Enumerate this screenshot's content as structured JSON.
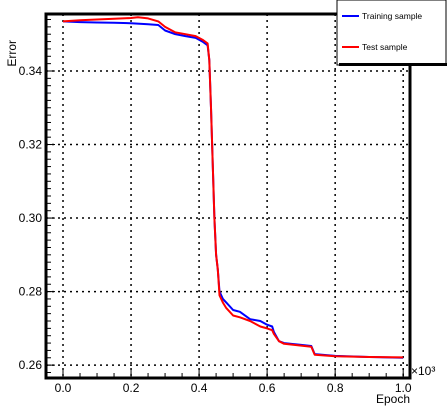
{
  "chart_data": {
    "type": "line",
    "xlabel": "Epoch",
    "ylabel": "Error",
    "x_multiplier_label": "×10³",
    "xlim": [
      -0.05,
      1.02
    ],
    "ylim": [
      0.2565,
      0.3555
    ],
    "x_ticks": [
      0.0,
      0.2,
      0.4,
      0.6,
      0.8,
      1.0
    ],
    "x_tick_labels": [
      "0.0",
      "0.2",
      "0.4",
      "0.6",
      "0.8",
      "1.0"
    ],
    "y_ticks": [
      0.26,
      0.28,
      0.3,
      0.32,
      0.34
    ],
    "y_tick_labels": [
      "0.26",
      "0.28",
      "0.30",
      "0.32",
      "0.34"
    ],
    "grid": true,
    "legend_position": "top-right",
    "series": [
      {
        "name": "Training sample",
        "color": "#0000ff",
        "points": [
          [
            0.0,
            0.3535
          ],
          [
            0.05,
            0.3533
          ],
          [
            0.1,
            0.3532
          ],
          [
            0.15,
            0.3531
          ],
          [
            0.2,
            0.353
          ],
          [
            0.25,
            0.3527
          ],
          [
            0.28,
            0.3525
          ],
          [
            0.3,
            0.351
          ],
          [
            0.33,
            0.35
          ],
          [
            0.36,
            0.3495
          ],
          [
            0.39,
            0.349
          ],
          [
            0.41,
            0.348
          ],
          [
            0.425,
            0.347
          ],
          [
            0.43,
            0.343
          ],
          [
            0.435,
            0.33
          ],
          [
            0.44,
            0.315
          ],
          [
            0.445,
            0.3
          ],
          [
            0.45,
            0.29
          ],
          [
            0.455,
            0.286
          ],
          [
            0.46,
            0.28
          ],
          [
            0.47,
            0.278
          ],
          [
            0.48,
            0.277
          ],
          [
            0.5,
            0.275
          ],
          [
            0.52,
            0.2745
          ],
          [
            0.55,
            0.2725
          ],
          [
            0.58,
            0.272
          ],
          [
            0.6,
            0.271
          ],
          [
            0.615,
            0.2705
          ],
          [
            0.62,
            0.269
          ],
          [
            0.635,
            0.2665
          ],
          [
            0.65,
            0.266
          ],
          [
            0.7,
            0.2655
          ],
          [
            0.73,
            0.2652
          ],
          [
            0.74,
            0.263
          ],
          [
            0.8,
            0.2625
          ],
          [
            0.9,
            0.2622
          ],
          [
            1.0,
            0.262
          ]
        ]
      },
      {
        "name": "Test sample",
        "color": "#ff0000",
        "points": [
          [
            0.0,
            0.3535
          ],
          [
            0.05,
            0.3538
          ],
          [
            0.1,
            0.354
          ],
          [
            0.15,
            0.3542
          ],
          [
            0.2,
            0.3544
          ],
          [
            0.22,
            0.3546
          ],
          [
            0.25,
            0.3543
          ],
          [
            0.28,
            0.3535
          ],
          [
            0.3,
            0.352
          ],
          [
            0.33,
            0.3505
          ],
          [
            0.36,
            0.35
          ],
          [
            0.39,
            0.3495
          ],
          [
            0.41,
            0.3485
          ],
          [
            0.425,
            0.3475
          ],
          [
            0.43,
            0.343
          ],
          [
            0.435,
            0.33
          ],
          [
            0.44,
            0.315
          ],
          [
            0.445,
            0.3
          ],
          [
            0.45,
            0.29
          ],
          [
            0.455,
            0.286
          ],
          [
            0.46,
            0.279
          ],
          [
            0.47,
            0.277
          ],
          [
            0.48,
            0.2755
          ],
          [
            0.5,
            0.2735
          ],
          [
            0.52,
            0.273
          ],
          [
            0.55,
            0.272
          ],
          [
            0.58,
            0.2705
          ],
          [
            0.6,
            0.27
          ],
          [
            0.615,
            0.2695
          ],
          [
            0.62,
            0.2685
          ],
          [
            0.635,
            0.2665
          ],
          [
            0.65,
            0.2658
          ],
          [
            0.7,
            0.2653
          ],
          [
            0.73,
            0.265
          ],
          [
            0.74,
            0.2628
          ],
          [
            0.8,
            0.2624
          ],
          [
            0.9,
            0.2622
          ],
          [
            1.0,
            0.2621
          ]
        ]
      }
    ]
  }
}
